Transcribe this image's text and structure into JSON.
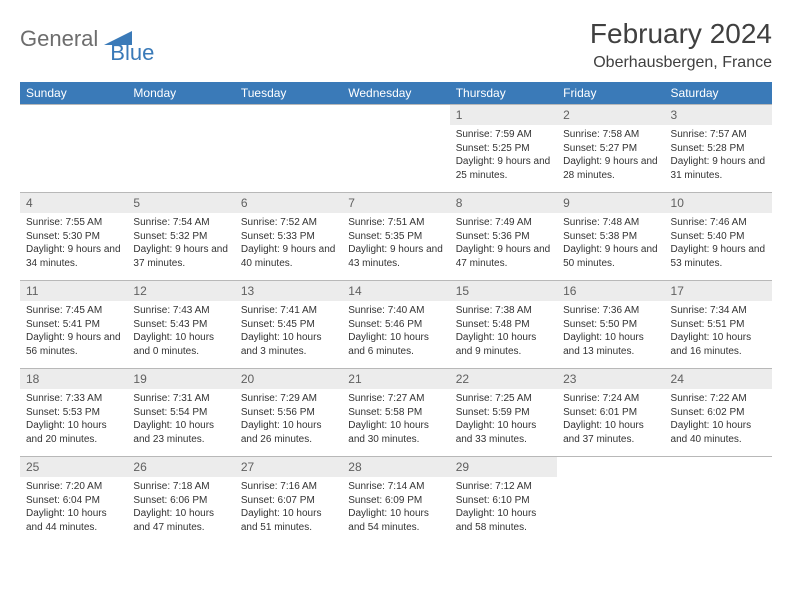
{
  "logo": {
    "part1": "General",
    "part2": "Blue"
  },
  "title": "February 2024",
  "location": "Oberhausbergen, France",
  "colors": {
    "header_bg": "#3a7ab8",
    "header_text": "#ffffff",
    "daynum_bg": "#ececec",
    "daynum_text": "#606060",
    "cell_border": "#b8b8b8",
    "body_text": "#333333",
    "logo_gray": "#6d6d6d",
    "logo_blue": "#3a7ab8"
  },
  "day_labels": [
    "Sunday",
    "Monday",
    "Tuesday",
    "Wednesday",
    "Thursday",
    "Friday",
    "Saturday"
  ],
  "weeks": [
    [
      null,
      null,
      null,
      null,
      {
        "n": "1",
        "sr": "7:59 AM",
        "ss": "5:25 PM",
        "dl": "9 hours and 25 minutes."
      },
      {
        "n": "2",
        "sr": "7:58 AM",
        "ss": "5:27 PM",
        "dl": "9 hours and 28 minutes."
      },
      {
        "n": "3",
        "sr": "7:57 AM",
        "ss": "5:28 PM",
        "dl": "9 hours and 31 minutes."
      }
    ],
    [
      {
        "n": "4",
        "sr": "7:55 AM",
        "ss": "5:30 PM",
        "dl": "9 hours and 34 minutes."
      },
      {
        "n": "5",
        "sr": "7:54 AM",
        "ss": "5:32 PM",
        "dl": "9 hours and 37 minutes."
      },
      {
        "n": "6",
        "sr": "7:52 AM",
        "ss": "5:33 PM",
        "dl": "9 hours and 40 minutes."
      },
      {
        "n": "7",
        "sr": "7:51 AM",
        "ss": "5:35 PM",
        "dl": "9 hours and 43 minutes."
      },
      {
        "n": "8",
        "sr": "7:49 AM",
        "ss": "5:36 PM",
        "dl": "9 hours and 47 minutes."
      },
      {
        "n": "9",
        "sr": "7:48 AM",
        "ss": "5:38 PM",
        "dl": "9 hours and 50 minutes."
      },
      {
        "n": "10",
        "sr": "7:46 AM",
        "ss": "5:40 PM",
        "dl": "9 hours and 53 minutes."
      }
    ],
    [
      {
        "n": "11",
        "sr": "7:45 AM",
        "ss": "5:41 PM",
        "dl": "9 hours and 56 minutes."
      },
      {
        "n": "12",
        "sr": "7:43 AM",
        "ss": "5:43 PM",
        "dl": "10 hours and 0 minutes."
      },
      {
        "n": "13",
        "sr": "7:41 AM",
        "ss": "5:45 PM",
        "dl": "10 hours and 3 minutes."
      },
      {
        "n": "14",
        "sr": "7:40 AM",
        "ss": "5:46 PM",
        "dl": "10 hours and 6 minutes."
      },
      {
        "n": "15",
        "sr": "7:38 AM",
        "ss": "5:48 PM",
        "dl": "10 hours and 9 minutes."
      },
      {
        "n": "16",
        "sr": "7:36 AM",
        "ss": "5:50 PM",
        "dl": "10 hours and 13 minutes."
      },
      {
        "n": "17",
        "sr": "7:34 AM",
        "ss": "5:51 PM",
        "dl": "10 hours and 16 minutes."
      }
    ],
    [
      {
        "n": "18",
        "sr": "7:33 AM",
        "ss": "5:53 PM",
        "dl": "10 hours and 20 minutes."
      },
      {
        "n": "19",
        "sr": "7:31 AM",
        "ss": "5:54 PM",
        "dl": "10 hours and 23 minutes."
      },
      {
        "n": "20",
        "sr": "7:29 AM",
        "ss": "5:56 PM",
        "dl": "10 hours and 26 minutes."
      },
      {
        "n": "21",
        "sr": "7:27 AM",
        "ss": "5:58 PM",
        "dl": "10 hours and 30 minutes."
      },
      {
        "n": "22",
        "sr": "7:25 AM",
        "ss": "5:59 PM",
        "dl": "10 hours and 33 minutes."
      },
      {
        "n": "23",
        "sr": "7:24 AM",
        "ss": "6:01 PM",
        "dl": "10 hours and 37 minutes."
      },
      {
        "n": "24",
        "sr": "7:22 AM",
        "ss": "6:02 PM",
        "dl": "10 hours and 40 minutes."
      }
    ],
    [
      {
        "n": "25",
        "sr": "7:20 AM",
        "ss": "6:04 PM",
        "dl": "10 hours and 44 minutes."
      },
      {
        "n": "26",
        "sr": "7:18 AM",
        "ss": "6:06 PM",
        "dl": "10 hours and 47 minutes."
      },
      {
        "n": "27",
        "sr": "7:16 AM",
        "ss": "6:07 PM",
        "dl": "10 hours and 51 minutes."
      },
      {
        "n": "28",
        "sr": "7:14 AM",
        "ss": "6:09 PM",
        "dl": "10 hours and 54 minutes."
      },
      {
        "n": "29",
        "sr": "7:12 AM",
        "ss": "6:10 PM",
        "dl": "10 hours and 58 minutes."
      },
      null,
      null
    ]
  ],
  "labels": {
    "sunrise": "Sunrise:",
    "sunset": "Sunset:",
    "daylight": "Daylight:"
  }
}
